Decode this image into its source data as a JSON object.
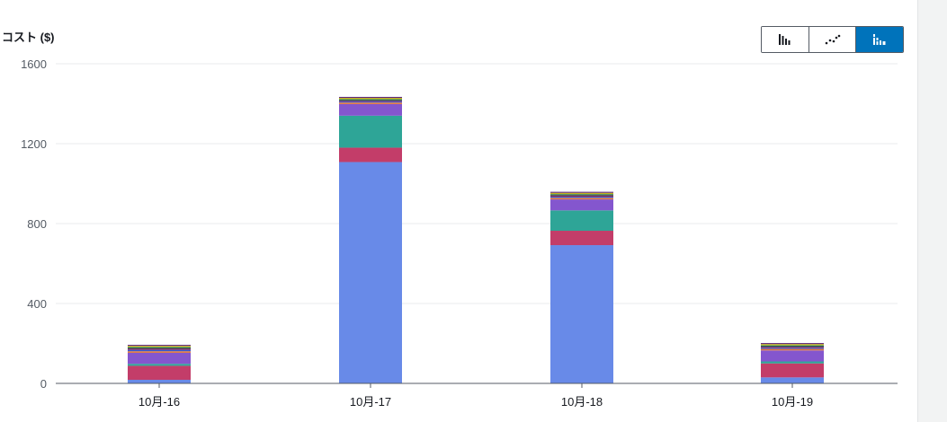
{
  "chart_data": {
    "type": "bar",
    "stacked": true,
    "ylabel": "コスト ($)",
    "ylim": [
      0,
      1600
    ],
    "yticks": [
      0,
      400,
      800,
      1200,
      1600
    ],
    "grid": true,
    "categories": [
      "10月-16",
      "10月-17",
      "10月-18",
      "10月-19"
    ],
    "series": [
      {
        "color": "#688ae8",
        "values": [
          18,
          1108,
          692,
          30
        ]
      },
      {
        "color": "#c33d69",
        "values": [
          70,
          72,
          72,
          70
        ]
      },
      {
        "color": "#2ea597",
        "values": [
          10,
          160,
          102,
          10
        ]
      },
      {
        "color": "#8456ce",
        "values": [
          55,
          58,
          55,
          55
        ]
      },
      {
        "color": "#e07941",
        "values": [
          8,
          8,
          8,
          8
        ]
      },
      {
        "color": "#3759ce",
        "values": [
          8,
          6,
          6,
          6
        ]
      },
      {
        "color": "#962249",
        "values": [
          6,
          4,
          6,
          5
        ]
      },
      {
        "color": "#096f64",
        "values": [
          6,
          6,
          6,
          6
        ]
      },
      {
        "color": "#c4b11b",
        "values": [
          7,
          7,
          7,
          7
        ]
      },
      {
        "color": "#5e2a7e",
        "values": [
          5,
          5,
          5,
          5
        ]
      }
    ]
  },
  "toolbar": {
    "buttons": [
      {
        "icon": "bar-chart-icon",
        "active": false
      },
      {
        "icon": "line-chart-icon",
        "active": false
      },
      {
        "icon": "stacked-bar-chart-icon",
        "active": true
      }
    ]
  }
}
